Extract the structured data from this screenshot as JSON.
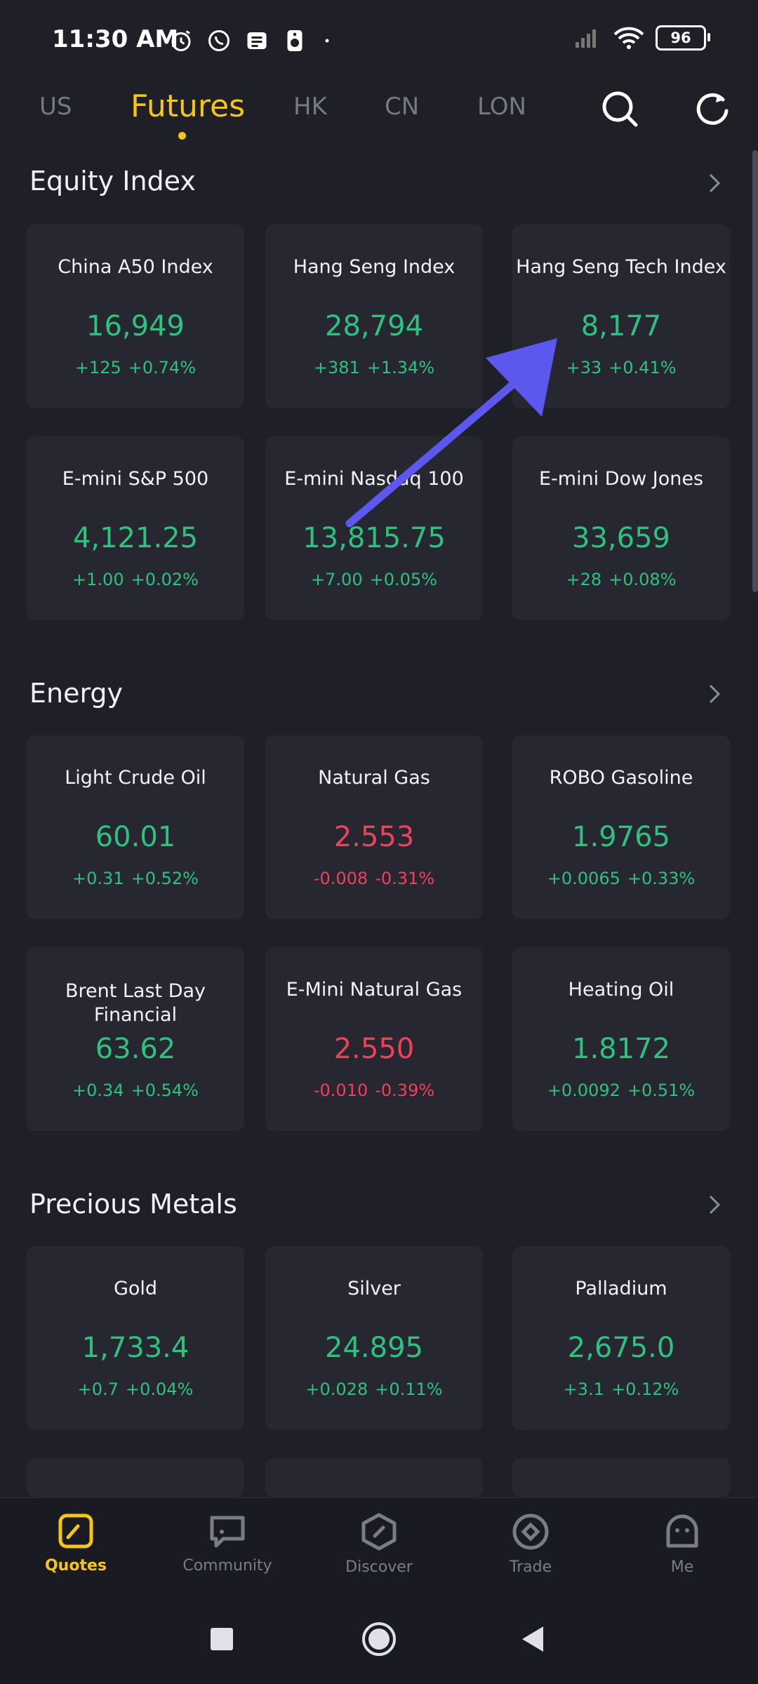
{
  "status_bar": {
    "time": "11:30 AM",
    "battery": "96"
  },
  "tabs": [
    {
      "label": "US"
    },
    {
      "label": "Futures"
    },
    {
      "label": "HK"
    },
    {
      "label": "CN"
    },
    {
      "label": "LON"
    }
  ],
  "sections": [
    {
      "title": "Equity Index",
      "cards": [
        {
          "name": "China A50 Index",
          "price": "16,949",
          "abs": "+125",
          "pct": "+0.74%",
          "dir": "up"
        },
        {
          "name": "Hang Seng Index",
          "price": "28,794",
          "abs": "+381",
          "pct": "+1.34%",
          "dir": "up"
        },
        {
          "name": "Hang Seng Tech Index",
          "price": "8,177",
          "abs": "+33",
          "pct": "+0.41%",
          "dir": "up"
        },
        {
          "name": "E-mini S&P 500",
          "price": "4,121.25",
          "abs": "+1.00",
          "pct": "+0.02%",
          "dir": "up"
        },
        {
          "name": "E-mini Nasdaq 100",
          "price": "13,815.75",
          "abs": "+7.00",
          "pct": "+0.05%",
          "dir": "up"
        },
        {
          "name": "E-mini Dow Jones",
          "price": "33,659",
          "abs": "+28",
          "pct": "+0.08%",
          "dir": "up"
        }
      ]
    },
    {
      "title": "Energy",
      "cards": [
        {
          "name": "Light  Crude Oil",
          "price": "60.01",
          "abs": "+0.31",
          "pct": "+0.52%",
          "dir": "up"
        },
        {
          "name": "Natural Gas",
          "price": "2.553",
          "abs": "-0.008",
          "pct": "-0.31%",
          "dir": "down"
        },
        {
          "name": "ROBO Gasoline",
          "price": "1.9765",
          "abs": "+0.0065",
          "pct": "+0.33%",
          "dir": "up"
        },
        {
          "name": "Brent Last Day Financial",
          "price": "63.62",
          "abs": "+0.34",
          "pct": "+0.54%",
          "dir": "up"
        },
        {
          "name": "E-Mini Natural Gas",
          "price": "2.550",
          "abs": "-0.010",
          "pct": "-0.39%",
          "dir": "down"
        },
        {
          "name": "Heating Oil",
          "price": "1.8172",
          "abs": "+0.0092",
          "pct": "+0.51%",
          "dir": "up"
        }
      ]
    },
    {
      "title": "Precious Metals",
      "cards": [
        {
          "name": "Gold",
          "price": "1,733.4",
          "abs": "+0.7",
          "pct": "+0.04%",
          "dir": "up"
        },
        {
          "name": "Silver",
          "price": "24.895",
          "abs": "+0.028",
          "pct": "+0.11%",
          "dir": "up"
        },
        {
          "name": "Palladium",
          "price": "2,675.0",
          "abs": "+3.1",
          "pct": "+0.12%",
          "dir": "up"
        }
      ]
    }
  ],
  "bottom_nav": [
    {
      "label": "Quotes",
      "icon": "quotes-icon"
    },
    {
      "label": "Community",
      "icon": "community-icon"
    },
    {
      "label": "Discover",
      "icon": "discover-icon"
    },
    {
      "label": "Trade",
      "icon": "trade-icon"
    },
    {
      "label": "Me",
      "icon": "me-icon"
    }
  ],
  "colors": {
    "accent": "#f5c518",
    "up": "#2ec27e",
    "down": "#f0405a",
    "background": "#1e1f27",
    "card": "#262731",
    "annotation_arrow": "#5b57ef"
  }
}
